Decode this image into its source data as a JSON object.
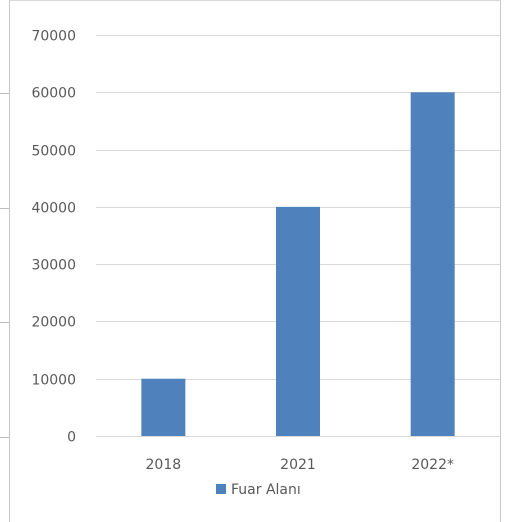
{
  "chart_data": {
    "type": "bar",
    "categories": [
      "2018",
      "2021",
      "2022*"
    ],
    "series": [
      {
        "name": "Fuar Alanı",
        "values": [
          10000,
          40000,
          60000
        ],
        "color": "#4f81bd"
      }
    ],
    "ylim": [
      0,
      70000
    ],
    "y_ticks": [
      "0",
      "10000",
      "20000",
      "30000",
      "40000",
      "50000",
      "60000",
      "70000"
    ],
    "grid": true,
    "legend": "bottom",
    "title": "",
    "xlabel": "",
    "ylabel": ""
  },
  "colors": {
    "gridline": "#d9d9d9",
    "axis_text": "#595959",
    "bar": "#4f81bd"
  }
}
